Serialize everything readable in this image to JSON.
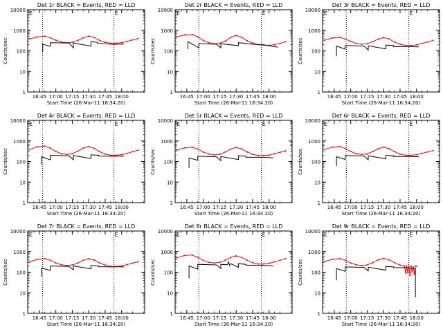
{
  "chart_data": [
    {
      "type": "line",
      "title": "Det 1r BLACK = Events, RED = LLD",
      "corner_mark": "E",
      "xlabel": "Start Time (26-Mar-11 16:34:20)",
      "ylabel": "Counts/sec",
      "xticks": [
        "16:45",
        "17:00",
        "17:15",
        "17:30",
        "17:45",
        "18:00"
      ],
      "yticks": [
        "1",
        "10",
        "100",
        "1000",
        "10000"
      ],
      "yscale": "log",
      "vlines": [
        "16:48",
        "17:53"
      ],
      "series": [
        {
          "color": "#ff0000",
          "x": [
            "16:36",
            "16:43",
            "16:50",
            "16:55",
            "17:00",
            "17:05",
            "17:10",
            "17:15",
            "17:20",
            "17:25",
            "17:30",
            "17:35",
            "17:40",
            "17:45",
            "17:50",
            "17:55",
            "18:00",
            "18:05",
            "18:10",
            "18:15"
          ],
          "y": [
            380,
            470,
            520,
            430,
            330,
            270,
            250,
            260,
            320,
            430,
            520,
            450,
            320,
            260,
            235,
            235,
            250,
            290,
            340,
            400
          ]
        },
        {
          "color": "#000000",
          "x": [
            "16:48",
            "16:48",
            "16:55",
            "16:55",
            "17:12",
            "17:16",
            "17:16",
            "17:32",
            "17:32",
            "17:38",
            "17:38",
            "17:54",
            "17:54",
            "18:02"
          ],
          "y": [
            90,
            210,
            165,
            250,
            240,
            140,
            240,
            170,
            280,
            260,
            230,
            205,
            215,
            210
          ]
        }
      ]
    },
    {
      "type": "line",
      "title": "Det 2r BLACK = Events, RED = LLD",
      "corner_mark": "E",
      "xlabel": "Start Time (26-Mar-11 16:34:20)",
      "ylabel": "Counts/sec",
      "xticks": [
        "16:45",
        "17:00",
        "17:15",
        "17:30",
        "17:45",
        "18:00"
      ],
      "yticks": [
        "1",
        "10",
        "100",
        "1000",
        "10000"
      ],
      "yscale": "log",
      "vlines": [
        "16:56",
        "17:53"
      ],
      "series": [
        {
          "color": "#ff0000",
          "x": [
            "16:36",
            "16:43",
            "16:50",
            "16:55",
            "17:00",
            "17:05",
            "17:10",
            "17:15",
            "17:20",
            "17:25",
            "17:30",
            "17:35",
            "17:40",
            "17:45",
            "17:50",
            "17:55",
            "18:00",
            "18:05",
            "18:10",
            "18:15"
          ],
          "y": [
            480,
            600,
            620,
            480,
            320,
            250,
            220,
            230,
            300,
            450,
            560,
            460,
            310,
            240,
            200,
            190,
            185,
            200,
            230,
            280
          ]
        },
        {
          "color": "#000000",
          "x": [
            "16:46",
            "16:46",
            "16:56",
            "16:56",
            "17:12",
            "17:16",
            "17:16",
            "17:32",
            "17:32",
            "17:39",
            "17:39",
            "17:54",
            "17:54",
            "18:08"
          ],
          "y": [
            120,
            280,
            140,
            220,
            210,
            140,
            220,
            180,
            250,
            230,
            220,
            195,
            200,
            150
          ]
        }
      ]
    },
    {
      "type": "line",
      "title": "Det 3r BLACK = Events, RED = LLD",
      "corner_mark": "E",
      "xlabel": "Start Time (26-Mar-11 16:34:20)",
      "ylabel": "Counts/sec",
      "xticks": [
        "16:45",
        "17:00",
        "17:15",
        "17:30",
        "17:45",
        "18:00"
      ],
      "yticks": [
        "1",
        "10",
        "100",
        "1000",
        "10000"
      ],
      "yscale": "log",
      "vlines": [
        "16:56",
        "17:53"
      ],
      "series": [
        {
          "color": "#ff0000",
          "x": [
            "16:36",
            "16:43",
            "16:50",
            "16:55",
            "17:00",
            "17:05",
            "17:10",
            "17:15",
            "17:20",
            "17:25",
            "17:30",
            "17:35",
            "17:40",
            "17:45",
            "17:50",
            "17:55",
            "18:00",
            "18:05",
            "18:10",
            "18:15"
          ],
          "y": [
            330,
            420,
            460,
            380,
            290,
            230,
            210,
            220,
            280,
            370,
            440,
            380,
            270,
            210,
            185,
            185,
            195,
            230,
            270,
            320
          ]
        },
        {
          "color": "#000000",
          "x": [
            "16:47",
            "16:47",
            "16:55",
            "16:55",
            "17:12",
            "17:16",
            "17:16",
            "17:32",
            "17:32",
            "17:39",
            "17:39",
            "17:54",
            "17:54",
            "18:02"
          ],
          "y": [
            55,
            170,
            120,
            180,
            170,
            110,
            175,
            125,
            190,
            180,
            160,
            160,
            160,
            155
          ]
        }
      ]
    },
    {
      "type": "line",
      "title": "Det 4r BLACK = Events, RED = LLD",
      "corner_mark": "E",
      "xlabel": "Start Time (26-Mar-11 16:34:20)",
      "ylabel": "Counts/sec",
      "xticks": [
        "16:45",
        "17:00",
        "17:15",
        "17:30",
        "17:45",
        "18:00"
      ],
      "yticks": [
        "1",
        "10",
        "100",
        "1000",
        "10000"
      ],
      "yscale": "log",
      "vlines": [
        "16:48",
        "17:53"
      ],
      "series": [
        {
          "color": "#ff0000",
          "x": [
            "16:36",
            "16:43",
            "16:50",
            "16:55",
            "17:00",
            "17:05",
            "17:10",
            "17:15",
            "17:20",
            "17:25",
            "17:30",
            "17:35",
            "17:40",
            "17:45",
            "17:50",
            "17:55",
            "18:00",
            "18:05",
            "18:10",
            "18:15"
          ],
          "y": [
            380,
            520,
            560,
            450,
            310,
            240,
            220,
            240,
            320,
            450,
            540,
            440,
            300,
            230,
            200,
            200,
            215,
            250,
            300,
            360
          ]
        },
        {
          "color": "#000000",
          "x": [
            "16:47",
            "16:47",
            "16:55",
            "16:55",
            "17:12",
            "17:16",
            "17:16",
            "17:32",
            "17:32",
            "17:39",
            "17:39",
            "17:54",
            "17:54",
            "18:02"
          ],
          "y": [
            70,
            170,
            120,
            200,
            190,
            120,
            195,
            140,
            210,
            200,
            185,
            180,
            185,
            180
          ]
        }
      ]
    },
    {
      "type": "line",
      "title": "Det 5r BLACK = Events, RED = LLD",
      "corner_mark": "E",
      "xlabel": "Start Time (26-Mar-11 16:34:20)",
      "ylabel": "Counts/sec",
      "xticks": [
        "16:45",
        "17:00",
        "17:15",
        "17:30",
        "17:45",
        "18:00"
      ],
      "yticks": [
        "1",
        "10",
        "100",
        "1000",
        "10000"
      ],
      "yscale": "log",
      "vlines": [
        "16:56",
        "17:53"
      ],
      "series": [
        {
          "color": "#ff0000",
          "x": [
            "16:36",
            "16:43",
            "16:50",
            "16:55",
            "17:00",
            "17:05",
            "17:10",
            "17:15",
            "17:20",
            "17:25",
            "17:30",
            "17:35",
            "17:40",
            "17:45",
            "17:50",
            "17:55",
            "18:00",
            "18:05",
            "18:10",
            "18:15"
          ],
          "y": [
            360,
            460,
            500,
            400,
            290,
            230,
            210,
            225,
            290,
            400,
            480,
            410,
            290,
            225,
            195,
            195,
            205,
            240,
            280,
            330
          ]
        },
        {
          "color": "#000000",
          "x": [
            "16:47",
            "16:47",
            "16:55",
            "16:55",
            "17:12",
            "17:16",
            "17:16",
            "17:32",
            "17:32",
            "17:39",
            "17:39",
            "17:54",
            "17:54",
            "18:04"
          ],
          "y": [
            50,
            150,
            115,
            180,
            170,
            110,
            175,
            125,
            190,
            180,
            160,
            160,
            160,
            150
          ]
        }
      ]
    },
    {
      "type": "line",
      "title": "Det 6r BLACK = Events, RED = LLD",
      "corner_mark": "E",
      "xlabel": "Start Time (26-Mar-11 16:34:20)",
      "ylabel": "Counts/sec",
      "xticks": [
        "16:45",
        "17:00",
        "17:15",
        "17:30",
        "17:45",
        "18:00"
      ],
      "yticks": [
        "1",
        "10",
        "100",
        "1000",
        "10000"
      ],
      "yscale": "log",
      "vlines": [
        "16:56",
        "17:53"
      ],
      "series": [
        {
          "color": "#ff0000",
          "x": [
            "16:36",
            "16:43",
            "16:50",
            "16:55",
            "17:00",
            "17:05",
            "17:10",
            "17:15",
            "17:20",
            "17:25",
            "17:30",
            "17:35",
            "17:40",
            "17:45",
            "17:50",
            "17:55",
            "18:00",
            "18:05",
            "18:10",
            "18:15"
          ],
          "y": [
            380,
            500,
            540,
            430,
            310,
            240,
            220,
            235,
            305,
            420,
            500,
            420,
            300,
            230,
            200,
            200,
            215,
            250,
            290,
            340
          ]
        },
        {
          "color": "#000000",
          "x": [
            "16:47",
            "16:47",
            "16:55",
            "16:55",
            "17:12",
            "17:16",
            "17:16",
            "17:32",
            "17:32",
            "17:39",
            "17:39",
            "17:54",
            "17:54",
            "18:02"
          ],
          "y": [
            60,
            170,
            125,
            195,
            185,
            120,
            190,
            135,
            200,
            190,
            175,
            175,
            175,
            170
          ]
        }
      ]
    },
    {
      "type": "line",
      "title": "Det 7r BLACK = Events, RED = LLD",
      "corner_mark": "E",
      "xlabel": "Start Time (26-Mar-11 16:34:20)",
      "ylabel": "Counts/sec",
      "xticks": [
        "16:45",
        "17:00",
        "17:15",
        "17:30",
        "17:45",
        "18:00"
      ],
      "yticks": [
        "1",
        "10",
        "100",
        "1000",
        "10000"
      ],
      "yscale": "log",
      "vlines": [
        "16:48",
        "17:53"
      ],
      "series": [
        {
          "color": "#ff0000",
          "x": [
            "16:36",
            "16:43",
            "16:50",
            "16:55",
            "17:00",
            "17:05",
            "17:10",
            "17:15",
            "17:20",
            "17:25",
            "17:30",
            "17:35",
            "17:40",
            "17:45",
            "17:50",
            "17:55",
            "18:00",
            "18:05",
            "18:10",
            "18:15"
          ],
          "y": [
            320,
            420,
            460,
            380,
            280,
            230,
            210,
            225,
            280,
            380,
            450,
            390,
            280,
            220,
            190,
            190,
            200,
            235,
            275,
            320
          ]
        },
        {
          "color": "#000000",
          "x": [
            "16:47",
            "16:47",
            "16:55",
            "16:55",
            "17:12",
            "17:16",
            "17:16",
            "17:32",
            "17:32",
            "17:39",
            "17:39",
            "17:54",
            "17:54",
            "18:02"
          ],
          "y": [
            60,
            160,
            120,
            200,
            190,
            130,
            200,
            145,
            210,
            200,
            185,
            180,
            185,
            180
          ]
        }
      ]
    },
    {
      "type": "line",
      "title": "Det 8r BLACK = Events, RED = LLD",
      "corner_mark": "E",
      "xlabel": "Start Time (26-Mar-11 16:34:20)",
      "ylabel": "Counts/sec",
      "xticks": [
        "16:45",
        "17:00",
        "17:15",
        "17:30",
        "17:45",
        "18:00"
      ],
      "yticks": [
        "1",
        "10",
        "100",
        "1000",
        "10000"
      ],
      "yscale": "log",
      "vlines": [
        "16:56",
        "17:53"
      ],
      "series": [
        {
          "color": "#ff0000",
          "x": [
            "16:36",
            "16:43",
            "16:50",
            "16:55",
            "17:00",
            "17:05",
            "17:10",
            "17:15",
            "17:20",
            "17:25",
            "17:30",
            "17:35",
            "17:40",
            "17:45",
            "17:50",
            "17:55",
            "18:00",
            "18:05",
            "18:10",
            "18:15"
          ],
          "y": [
            500,
            650,
            680,
            520,
            380,
            300,
            280,
            300,
            380,
            520,
            620,
            520,
            380,
            290,
            250,
            250,
            270,
            320,
            380,
            460
          ]
        },
        {
          "color": "#000000",
          "x": [
            "16:47",
            "16:47",
            "16:55",
            "16:55",
            "17:12",
            "17:16",
            "17:16",
            "17:22",
            "17:23",
            "17:24",
            "17:25",
            "17:32",
            "17:32",
            "17:39",
            "17:39",
            "17:54",
            "17:54",
            "18:04"
          ],
          "y": [
            50,
            200,
            140,
            240,
            225,
            150,
            240,
            230,
            320,
            210,
            260,
            170,
            260,
            240,
            220,
            210,
            215,
            200
          ]
        }
      ]
    },
    {
      "type": "line",
      "title": "Det 9r BLACK = Events, RED = LLD",
      "corner_mark": "E",
      "xlabel": "Start Time (26-Mar-11 16:34:20)",
      "ylabel": "Counts/sec",
      "xticks": [
        "16:45",
        "17:00",
        "17:15",
        "17:30",
        "17:45",
        "18:00"
      ],
      "yticks": [
        "1",
        "10",
        "100",
        "1000",
        "10000"
      ],
      "yscale": "log",
      "vlines": [
        "16:56",
        "17:53"
      ],
      "series": [
        {
          "color": "#ff0000",
          "x": [
            "16:36",
            "16:43",
            "16:50",
            "16:55",
            "17:00",
            "17:05",
            "17:10",
            "17:15",
            "17:20",
            "17:25",
            "17:30",
            "17:35",
            "17:40",
            "17:45",
            "17:49",
            "17:50",
            "17:51",
            "17:52",
            "17:53",
            "17:54",
            "17:55",
            "17:56",
            "17:57",
            "17:58",
            "17:59",
            "18:00"
          ],
          "y": [
            330,
            420,
            460,
            380,
            280,
            230,
            210,
            225,
            290,
            400,
            470,
            400,
            290,
            220,
            200,
            90,
            200,
            95,
            200,
            70,
            200,
            100,
            180,
            80,
            200,
            200
          ]
        },
        {
          "color": "#000000",
          "x": [
            "16:47",
            "16:47",
            "16:55",
            "16:55",
            "17:12",
            "17:16",
            "17:16",
            "17:32",
            "17:32",
            "17:39",
            "17:39",
            "17:53",
            "17:54",
            "17:59",
            "17:59",
            "17:59"
          ],
          "y": [
            40,
            150,
            110,
            180,
            170,
            115,
            175,
            125,
            190,
            180,
            165,
            165,
            160,
            150,
            6,
            120
          ]
        }
      ]
    }
  ]
}
